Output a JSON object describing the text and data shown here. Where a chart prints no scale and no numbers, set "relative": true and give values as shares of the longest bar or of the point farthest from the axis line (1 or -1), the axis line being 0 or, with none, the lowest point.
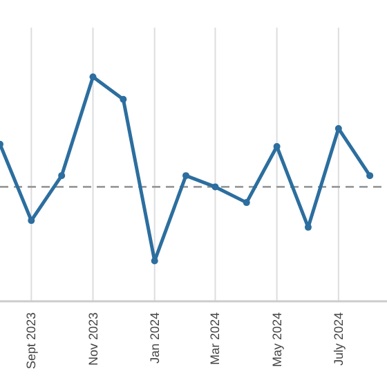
{
  "chart_data": {
    "type": "line",
    "relative": true,
    "x": [
      "2023-08",
      "2023-09",
      "2023-10",
      "2023-11",
      "2023-12",
      "2024-01",
      "2024-02",
      "2024-03",
      "2024-04",
      "2024-05",
      "2024-06",
      "2024-07",
      "2024-08"
    ],
    "xlim": [
      "2023-08-01",
      "2024-08-18"
    ],
    "xticks": [
      {
        "value": "2023-09",
        "label": "Sept 2023"
      },
      {
        "value": "2023-11",
        "label": "Nov 2023"
      },
      {
        "value": "2024-01",
        "label": "Jan 2024"
      },
      {
        "value": "2024-03",
        "label": "Mar 2024"
      },
      {
        "value": "2024-05",
        "label": "May 2024"
      },
      {
        "value": "2024-07",
        "label": "July 2024"
      }
    ],
    "series": [
      {
        "color": "#2c6e9f",
        "values": [
          0.7,
          0.36,
          0.56,
          1,
          0.9,
          0.18,
          0.56,
          0.51,
          0.44,
          0.69,
          0.33,
          0.77,
          0.56
        ]
      }
    ],
    "ref_lines": [
      {
        "axis": "y",
        "value": 0.51,
        "color": "#999999",
        "line_style": "dashed"
      }
    ],
    "grid": "x",
    "marker": "circle",
    "line_style": "solid"
  }
}
